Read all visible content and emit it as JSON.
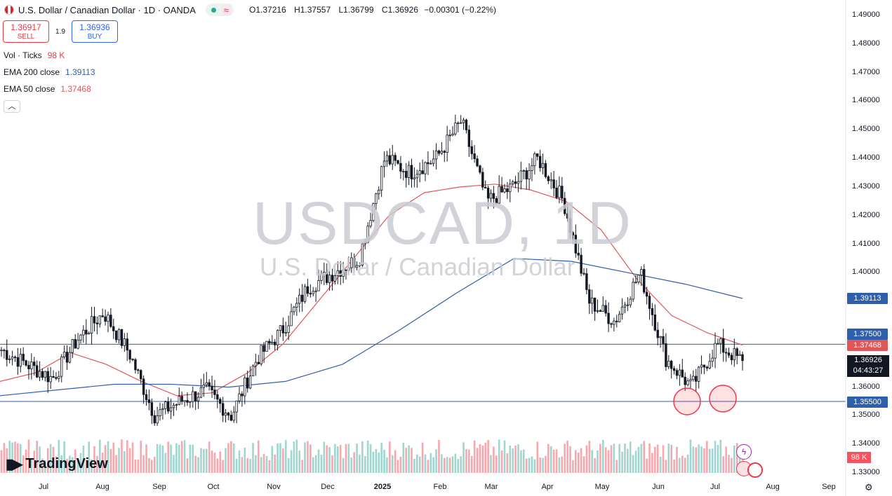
{
  "header": {
    "symbol": "U.S. Dollar / Canadian Dollar · 1D · OANDA",
    "wave_icon": "≈",
    "o_label": "O",
    "o_value": "1.37216",
    "h_label": "H",
    "h_value": "1.37557",
    "l_label": "L",
    "l_value": "1.36799",
    "c_label": "C",
    "c_value": "1.36926",
    "change": "−0.00301 (−0.22%)"
  },
  "trade": {
    "sell_price": "1.36917",
    "sell_label": "SELL",
    "spread": "1.9",
    "buy_price": "1.36936",
    "buy_label": "BUY"
  },
  "indicators": {
    "vol_label": "Vol · Ticks",
    "vol_value": "98 K",
    "ema200_label": "EMA 200 close",
    "ema200_value": "1.39113",
    "ema50_label": "EMA 50 close",
    "ema50_value": "1.37468"
  },
  "watermark": {
    "ticker": "USDCAD, 1D",
    "name": "U.S. Dollar / Canadian Dollar"
  },
  "brand": "TradingView",
  "axis": {
    "y_ticks": [
      "1.49000",
      "1.48000",
      "1.47000",
      "1.46000",
      "1.45000",
      "1.44000",
      "1.43000",
      "1.42000",
      "1.41000",
      "1.40000",
      "1.36000",
      "1.35000",
      "1.34000",
      "1.33000"
    ],
    "x_ticks": [
      "Jul",
      "Aug",
      "Sep",
      "Oct",
      "Nov",
      "Dec",
      "2025",
      "Feb",
      "Mar",
      "Apr",
      "May",
      "Jun",
      "Jul",
      "Aug",
      "Sep"
    ]
  },
  "price_tags": {
    "ema200": "1.39113",
    "level_high": "1.37500",
    "ema50": "1.37468",
    "current": "1.36926",
    "countdown": "04:43:27",
    "level_low": "1.35500",
    "volume": "98 K"
  },
  "colors": {
    "up": "#131722",
    "down": "#131722",
    "ema50": "#e15759",
    "ema200": "#2e5fad",
    "vol_up": "#9fd6d0",
    "vol_down": "#f7a7ad",
    "level": "#2e5fad"
  },
  "chart_data": {
    "type": "candlestick",
    "ylim": [
      1.3275,
      1.4925
    ],
    "horizontal_levels": [
      1.375,
      1.355
    ],
    "x_months": [
      "Jul",
      "Aug",
      "Sep",
      "Oct",
      "Nov",
      "Dec",
      "2025",
      "Feb",
      "Mar",
      "Apr",
      "May",
      "Jun",
      "Jul",
      "Aug",
      "Sep"
    ],
    "close_path": [
      [
        1.373,
        "Jun 2024"
      ],
      [
        1.368,
        "Jul 2024"
      ],
      [
        1.363,
        "Jul 2024"
      ],
      [
        1.377,
        "Aug 2024"
      ],
      [
        1.386,
        "Aug 2024"
      ],
      [
        1.372,
        "Aug 2024"
      ],
      [
        1.35,
        "Sep 2024"
      ],
      [
        1.355,
        "Sep 2024"
      ],
      [
        1.359,
        "Sep 2024"
      ],
      [
        1.35,
        "Oct 2024"
      ],
      [
        1.37,
        "Oct 2024"
      ],
      [
        1.38,
        "Oct 2024"
      ],
      [
        1.395,
        "Nov 2024"
      ],
      [
        1.4,
        "Nov 2024"
      ],
      [
        1.405,
        "Dec 2024"
      ],
      [
        1.44,
        "Dec 2024"
      ],
      [
        1.435,
        "Jan 2025"
      ],
      [
        1.44,
        "Jan 2025"
      ],
      [
        1.453,
        "Feb 2025"
      ],
      [
        1.425,
        "Feb 2025"
      ],
      [
        1.43,
        "Mar 2025"
      ],
      [
        1.44,
        "Mar 2025"
      ],
      [
        1.425,
        "Apr 2025"
      ],
      [
        1.39,
        "Apr 2025"
      ],
      [
        1.383,
        "May 2025"
      ],
      [
        1.4,
        "May 2025"
      ],
      [
        1.37,
        "Jun 2025"
      ],
      [
        1.36,
        "Jun 2025"
      ],
      [
        1.375,
        "Jul 2025"
      ],
      [
        1.369,
        "Jul 2025"
      ]
    ],
    "ema50": [
      1.362,
      1.365,
      1.372,
      1.368,
      1.362,
      1.357,
      1.358,
      1.365,
      1.375,
      1.39,
      1.405,
      1.42,
      1.428,
      1.43,
      1.431,
      1.429,
      1.425,
      1.415,
      1.398,
      1.385,
      1.379,
      1.3747
    ],
    "ema200": [
      1.357,
      1.359,
      1.361,
      1.361,
      1.36,
      1.362,
      1.368,
      1.38,
      1.393,
      1.405,
      1.404,
      1.4,
      1.396,
      1.391
    ],
    "highlights": [
      {
        "month": "Jun",
        "price": 1.355
      },
      {
        "month": "Jul",
        "price": 1.356
      }
    ]
  }
}
